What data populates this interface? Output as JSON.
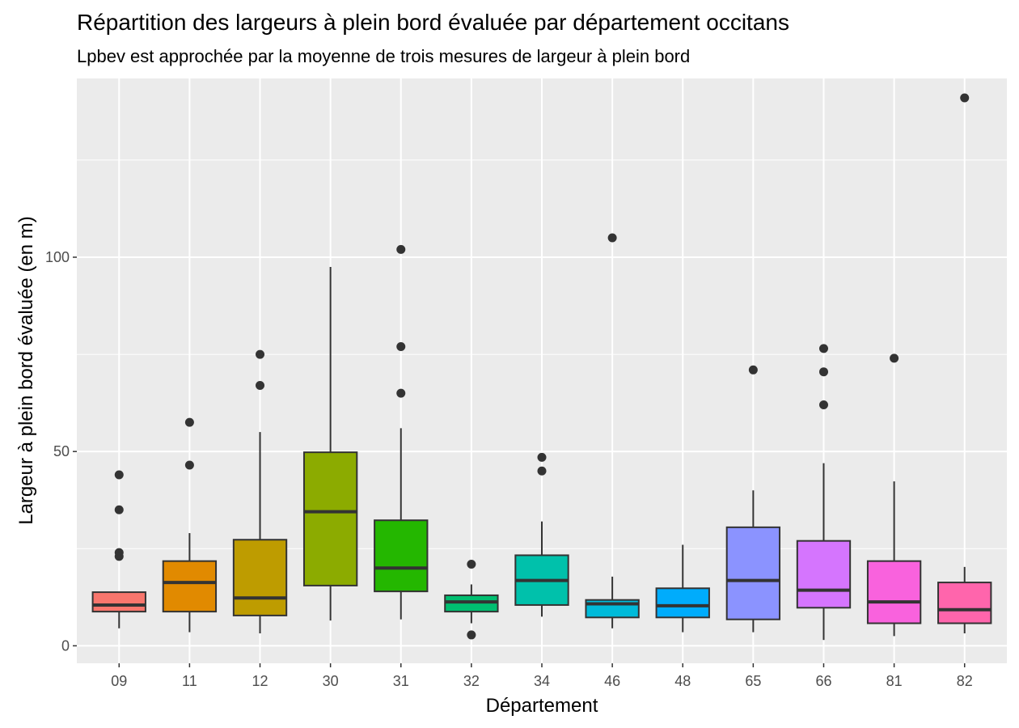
{
  "chart_data": {
    "type": "boxplot",
    "title": "Répartition des largeurs à plein bord évaluée par département occitans",
    "subtitle": "Lpbev est approchée par la moyenne de trois mesures de largeur à plein bord",
    "xlabel": "Département",
    "ylabel": "Largeur à plein bord évaluée (en m)",
    "ylim": [
      -4.5,
      146
    ],
    "y_ticks": [
      0,
      50,
      100
    ],
    "y_tick_labels": [
      "0",
      "50",
      "100"
    ],
    "grid": true,
    "legend": "none",
    "categories": [
      "09",
      "11",
      "12",
      "30",
      "31",
      "32",
      "34",
      "46",
      "48",
      "65",
      "66",
      "81",
      "82"
    ],
    "boxes": [
      {
        "name": "09",
        "color": "#F8766D",
        "min": 4.5,
        "q1": 8.8,
        "median": 10.5,
        "q3": 13.8,
        "max": 13.8,
        "outliers": [
          44,
          35,
          24,
          23
        ]
      },
      {
        "name": "11",
        "color": "#E18A00",
        "min": 3.5,
        "q1": 8.8,
        "median": 16.3,
        "q3": 21.8,
        "max": 29,
        "outliers": [
          57.5,
          46.5
        ]
      },
      {
        "name": "12",
        "color": "#BE9C00",
        "min": 3.2,
        "q1": 7.8,
        "median": 12.3,
        "q3": 27.3,
        "max": 55,
        "outliers": [
          75,
          67
        ]
      },
      {
        "name": "30",
        "color": "#8CAB00",
        "min": 6.5,
        "q1": 15.5,
        "median": 34.5,
        "q3": 49.8,
        "max": 97.5,
        "outliers": []
      },
      {
        "name": "31",
        "color": "#24B700",
        "min": 6.8,
        "q1": 14,
        "median": 20,
        "q3": 32.3,
        "max": 56,
        "outliers": [
          102,
          77,
          65
        ]
      },
      {
        "name": "32",
        "color": "#00BE70",
        "min": 5.8,
        "q1": 8.8,
        "median": 11.3,
        "q3": 13,
        "max": 15.8,
        "outliers": [
          21,
          2.8
        ]
      },
      {
        "name": "34",
        "color": "#00C1AB",
        "min": 7.5,
        "q1": 10.5,
        "median": 16.8,
        "q3": 23.3,
        "max": 32,
        "outliers": [
          48.5,
          45
        ]
      },
      {
        "name": "46",
        "color": "#00BBDA",
        "min": 4.5,
        "q1": 7.3,
        "median": 10.8,
        "q3": 11.8,
        "max": 17.8,
        "outliers": [
          105
        ]
      },
      {
        "name": "48",
        "color": "#00ACFC",
        "min": 3.5,
        "q1": 7.3,
        "median": 10.3,
        "q3": 14.8,
        "max": 26,
        "outliers": []
      },
      {
        "name": "65",
        "color": "#8B93FF",
        "min": 3.5,
        "q1": 6.8,
        "median": 16.8,
        "q3": 30.5,
        "max": 40,
        "outliers": [
          71
        ]
      },
      {
        "name": "66",
        "color": "#D575FE",
        "min": 1.5,
        "q1": 9.8,
        "median": 14.3,
        "q3": 27,
        "max": 47,
        "outliers": [
          76.5,
          70.5,
          62
        ]
      },
      {
        "name": "81",
        "color": "#F962DD",
        "min": 2.5,
        "q1": 5.8,
        "median": 11.3,
        "q3": 21.8,
        "max": 42.3,
        "outliers": [
          74
        ]
      },
      {
        "name": "82",
        "color": "#FF65AC",
        "min": 3.2,
        "q1": 5.8,
        "median": 9.3,
        "q3": 16.3,
        "max": 20.3,
        "outliers": [
          141
        ]
      }
    ]
  }
}
